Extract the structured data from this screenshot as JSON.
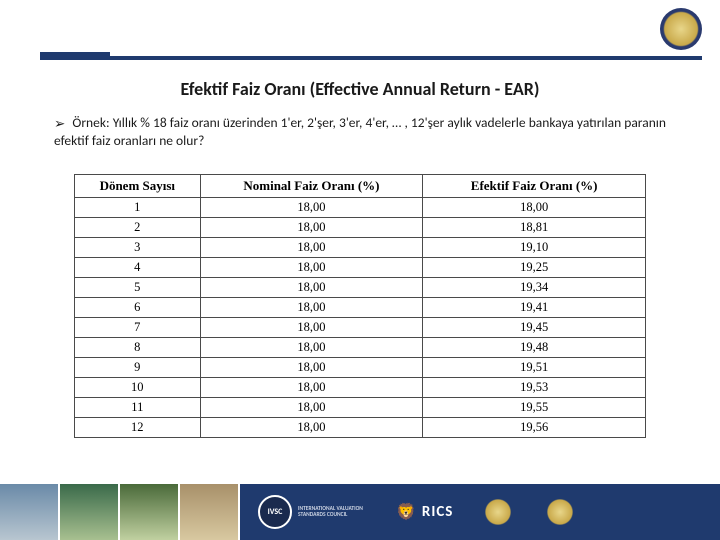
{
  "title": "Efektif Faiz Oranı (Effective Annual Return - EAR)",
  "bullet_glyph": "➢",
  "body": "Örnek: Yıllık % 18 faiz oranı üzerinden 1'er, 2'şer, 3'er, 4'er, … , 12'şer aylık vadelerle bankaya yatırılan paranın efektif faiz oranları ne olur?",
  "table": {
    "headers": [
      "Dönem Sayısı",
      "Nominal Faiz Oranı (%)",
      "Efektif Faiz Oranı (%)"
    ],
    "rows": [
      [
        "1",
        "18,00",
        "18,00"
      ],
      [
        "2",
        "18,00",
        "18,81"
      ],
      [
        "3",
        "18,00",
        "19,10"
      ],
      [
        "4",
        "18,00",
        "19,25"
      ],
      [
        "5",
        "18,00",
        "19,34"
      ],
      [
        "6",
        "18,00",
        "19,41"
      ],
      [
        "7",
        "18,00",
        "19,45"
      ],
      [
        "8",
        "18,00",
        "19,48"
      ],
      [
        "9",
        "18,00",
        "19,51"
      ],
      [
        "10",
        "18,00",
        "19,53"
      ],
      [
        "11",
        "18,00",
        "19,55"
      ],
      [
        "12",
        "18,00",
        "19,56"
      ]
    ]
  },
  "footer": {
    "thumb_gradients": [
      [
        "#6a8aa8",
        "#b8c6d0"
      ],
      [
        "#3a6a4a",
        "#a8c090"
      ],
      [
        "#4a6a3a",
        "#c0d0a0"
      ],
      [
        "#a8906a",
        "#d8c8a0"
      ]
    ],
    "ivsc_label": "IVSC",
    "ivsc_sub": "INTERNATIONAL VALUATION STANDARDS COUNCIL",
    "rics_label": "RICS",
    "rics_glyph": "🦁"
  },
  "colors": {
    "brand_blue": "#1f3a6e",
    "text": "#1a1a1a",
    "table_border": "#4a4a4a"
  }
}
